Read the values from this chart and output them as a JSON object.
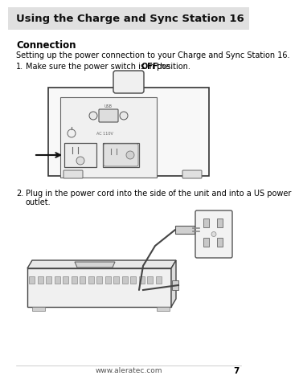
{
  "page_bg": "#ffffff",
  "header_bg": "#e0e0e0",
  "header_text": "Using the Charge and Sync Station 16",
  "header_fontsize": 9.5,
  "section_title": "Connection",
  "section_fontsize": 8.5,
  "subtitle_text": "Setting up the power connection to your Charge and Sync Station 16.",
  "subtitle_fontsize": 7.0,
  "step1_pre": "Make sure the power switch is in the ",
  "step1_bold": "OFF",
  "step1_post": " position.",
  "step1_fontsize": 7.0,
  "step2_text_line1": "Plug in the power cord into the side of the unit and into a US power",
  "step2_text_line2": "outlet.",
  "step2_fontsize": 7.0,
  "footer_url": "www.aleratec.com",
  "footer_page": "7",
  "footer_fontsize": 6.5
}
